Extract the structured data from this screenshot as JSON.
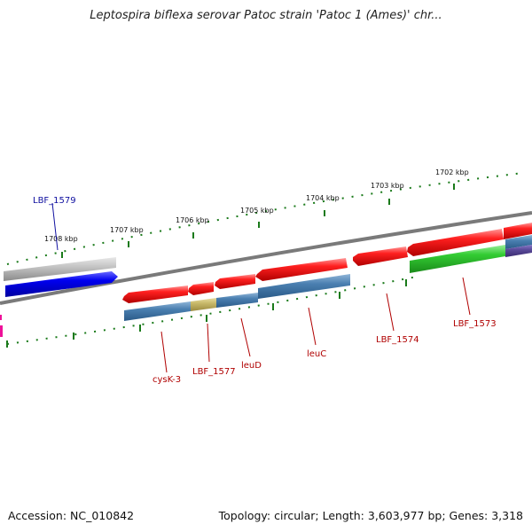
{
  "title": "Leptospira biflexa serovar Patoc strain 'Patoc 1 (Ames)' chr...",
  "footer": {
    "accession": "Accession: NC_010842",
    "topology": "Topology: circular; Length: 3,603,977 bp; Genes: 3,318"
  },
  "scale_labels": [
    "1702 kbp",
    "1703 kbp",
    "1704 kbp",
    "1705 kbp",
    "1706 kbp",
    "1707 kbp",
    "1708 kbp"
  ],
  "gene_labels": [
    "LBF_1579",
    "cysK-3",
    "LBF_1577",
    "leuD",
    "leuC",
    "LBF_1574",
    "LBF_1573"
  ],
  "colors": {
    "backbone": "#808080",
    "forward_gene": "#ee1c1c",
    "reverse_gene": "#0000ee",
    "grey_gene": "#c0c0c0",
    "green_gene": "#33cc33",
    "steelblue_feature": "#4a7fb0",
    "khaki_feature": "#c8b96a",
    "purple_feature": "#5a4a9a",
    "magenta_feature": "#ee1199",
    "tick_green": "#1a7a1a",
    "label_red": "#b00000",
    "label_blue": "#1010a0"
  }
}
